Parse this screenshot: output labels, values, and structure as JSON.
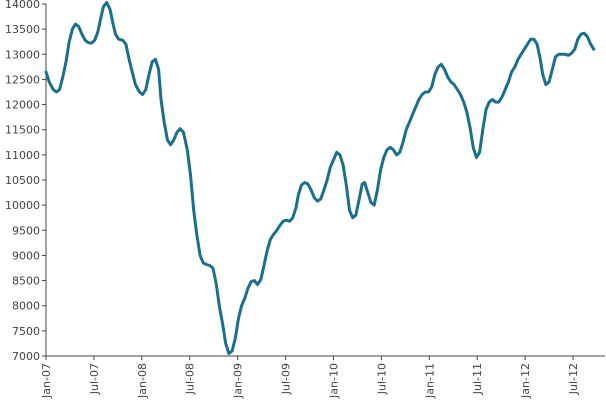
{
  "chart_data": {
    "type": "line",
    "title": "",
    "xlabel": "",
    "ylabel": "",
    "ylim": [
      7000,
      14000
    ],
    "xlim": [
      0,
      70
    ],
    "line_color": "#1a6f8c",
    "grid": false,
    "x_ticks": [
      {
        "label": "Jan-07",
        "x": 0
      },
      {
        "label": "Jul-07",
        "x": 6
      },
      {
        "label": "Jan-08",
        "x": 12
      },
      {
        "label": "Jul-08",
        "x": 18
      },
      {
        "label": "Jan-09",
        "x": 24
      },
      {
        "label": "Jul-09",
        "x": 30
      },
      {
        "label": "Jan-10",
        "x": 36
      },
      {
        "label": "Jul-10",
        "x": 42
      },
      {
        "label": "Jan-11",
        "x": 48
      },
      {
        "label": "Jul-11",
        "x": 54
      },
      {
        "label": "Jan-12",
        "x": 60
      },
      {
        "label": "Jul-12",
        "x": 66
      }
    ],
    "y_ticks": [
      7000,
      7500,
      8000,
      8500,
      9000,
      9500,
      10000,
      10500,
      11000,
      11500,
      12000,
      12500,
      13000,
      13500,
      14000
    ],
    "series": [
      {
        "name": "",
        "points": [
          [
            0.0,
            12650
          ],
          [
            0.4,
            12450
          ],
          [
            0.9,
            12300
          ],
          [
            1.3,
            12250
          ],
          [
            1.7,
            12300
          ],
          [
            2.1,
            12550
          ],
          [
            2.5,
            12850
          ],
          [
            2.9,
            13250
          ],
          [
            3.3,
            13500
          ],
          [
            3.7,
            13600
          ],
          [
            4.1,
            13550
          ],
          [
            4.5,
            13400
          ],
          [
            4.9,
            13280
          ],
          [
            5.3,
            13230
          ],
          [
            5.7,
            13220
          ],
          [
            6.1,
            13280
          ],
          [
            6.5,
            13450
          ],
          [
            6.9,
            13750
          ],
          [
            7.2,
            13950
          ],
          [
            7.6,
            14030
          ],
          [
            8.0,
            13900
          ],
          [
            8.4,
            13600
          ],
          [
            8.7,
            13400
          ],
          [
            9.1,
            13300
          ],
          [
            9.6,
            13280
          ],
          [
            10.0,
            13200
          ],
          [
            10.4,
            12900
          ],
          [
            10.8,
            12650
          ],
          [
            11.2,
            12400
          ],
          [
            11.7,
            12250
          ],
          [
            12.1,
            12200
          ],
          [
            12.5,
            12300
          ],
          [
            12.9,
            12600
          ],
          [
            13.3,
            12850
          ],
          [
            13.7,
            12900
          ],
          [
            14.1,
            12700
          ],
          [
            14.4,
            12100
          ],
          [
            14.8,
            11650
          ],
          [
            15.2,
            11300
          ],
          [
            15.6,
            11200
          ],
          [
            16.0,
            11300
          ],
          [
            16.4,
            11450
          ],
          [
            16.8,
            11520
          ],
          [
            17.2,
            11450
          ],
          [
            17.7,
            11100
          ],
          [
            18.1,
            10600
          ],
          [
            18.5,
            9900
          ],
          [
            18.9,
            9400
          ],
          [
            19.3,
            9000
          ],
          [
            19.7,
            8850
          ],
          [
            20.1,
            8820
          ],
          [
            20.5,
            8800
          ],
          [
            20.9,
            8750
          ],
          [
            21.3,
            8450
          ],
          [
            21.7,
            8000
          ],
          [
            22.1,
            7650
          ],
          [
            22.5,
            7250
          ],
          [
            22.9,
            7050
          ],
          [
            23.3,
            7100
          ],
          [
            23.7,
            7350
          ],
          [
            24.1,
            7750
          ],
          [
            24.5,
            8000
          ],
          [
            24.9,
            8150
          ],
          [
            25.3,
            8350
          ],
          [
            25.7,
            8480
          ],
          [
            26.1,
            8500
          ],
          [
            26.5,
            8420
          ],
          [
            26.9,
            8520
          ],
          [
            27.3,
            8800
          ],
          [
            27.7,
            9100
          ],
          [
            28.1,
            9320
          ],
          [
            28.5,
            9420
          ],
          [
            28.9,
            9500
          ],
          [
            29.3,
            9600
          ],
          [
            29.7,
            9680
          ],
          [
            30.1,
            9700
          ],
          [
            30.5,
            9680
          ],
          [
            30.9,
            9750
          ],
          [
            31.3,
            9950
          ],
          [
            31.6,
            10200
          ],
          [
            32.0,
            10400
          ],
          [
            32.4,
            10450
          ],
          [
            32.8,
            10420
          ],
          [
            33.2,
            10300
          ],
          [
            33.6,
            10150
          ],
          [
            34.0,
            10080
          ],
          [
            34.4,
            10120
          ],
          [
            34.8,
            10300
          ],
          [
            35.2,
            10500
          ],
          [
            35.6,
            10750
          ],
          [
            36.0,
            10900
          ],
          [
            36.4,
            11050
          ],
          [
            36.8,
            11000
          ],
          [
            37.2,
            10800
          ],
          [
            37.6,
            10400
          ],
          [
            38.0,
            9900
          ],
          [
            38.4,
            9750
          ],
          [
            38.8,
            9800
          ],
          [
            39.2,
            10100
          ],
          [
            39.6,
            10420
          ],
          [
            39.9,
            10450
          ],
          [
            40.3,
            10250
          ],
          [
            40.7,
            10050
          ],
          [
            41.1,
            10000
          ],
          [
            41.5,
            10300
          ],
          [
            41.9,
            10700
          ],
          [
            42.3,
            10950
          ],
          [
            42.7,
            11100
          ],
          [
            43.1,
            11150
          ],
          [
            43.5,
            11100
          ],
          [
            43.9,
            11000
          ],
          [
            44.3,
            11050
          ],
          [
            44.7,
            11250
          ],
          [
            45.1,
            11500
          ],
          [
            45.5,
            11650
          ],
          [
            45.9,
            11800
          ],
          [
            46.3,
            11950
          ],
          [
            46.7,
            12100
          ],
          [
            47.1,
            12200
          ],
          [
            47.5,
            12250
          ],
          [
            47.9,
            12250
          ],
          [
            48.3,
            12350
          ],
          [
            48.7,
            12600
          ],
          [
            49.1,
            12750
          ],
          [
            49.5,
            12800
          ],
          [
            49.9,
            12700
          ],
          [
            50.3,
            12550
          ],
          [
            50.7,
            12450
          ],
          [
            51.1,
            12400
          ],
          [
            51.5,
            12300
          ],
          [
            51.9,
            12200
          ],
          [
            52.3,
            12050
          ],
          [
            52.7,
            11850
          ],
          [
            53.1,
            11550
          ],
          [
            53.5,
            11150
          ],
          [
            53.9,
            10950
          ],
          [
            54.3,
            11050
          ],
          [
            54.7,
            11500
          ],
          [
            55.1,
            11900
          ],
          [
            55.5,
            12050
          ],
          [
            55.9,
            12100
          ],
          [
            56.3,
            12050
          ],
          [
            56.7,
            12050
          ],
          [
            57.1,
            12150
          ],
          [
            57.5,
            12300
          ],
          [
            57.9,
            12450
          ],
          [
            58.3,
            12650
          ],
          [
            58.7,
            12750
          ],
          [
            59.1,
            12900
          ],
          [
            59.5,
            13000
          ],
          [
            59.9,
            13100
          ],
          [
            60.3,
            13200
          ],
          [
            60.7,
            13300
          ],
          [
            61.1,
            13300
          ],
          [
            61.5,
            13200
          ],
          [
            61.9,
            12900
          ],
          [
            62.2,
            12600
          ],
          [
            62.6,
            12400
          ],
          [
            63.0,
            12450
          ],
          [
            63.4,
            12700
          ],
          [
            63.8,
            12950
          ],
          [
            64.2,
            13000
          ],
          [
            64.6,
            13000
          ],
          [
            65.0,
            13000
          ],
          [
            65.4,
            12980
          ],
          [
            65.8,
            13020
          ],
          [
            66.2,
            13100
          ],
          [
            66.6,
            13300
          ],
          [
            67.0,
            13400
          ],
          [
            67.4,
            13420
          ],
          [
            67.8,
            13350
          ],
          [
            68.2,
            13200
          ],
          [
            68.6,
            13100
          ]
        ]
      }
    ]
  }
}
